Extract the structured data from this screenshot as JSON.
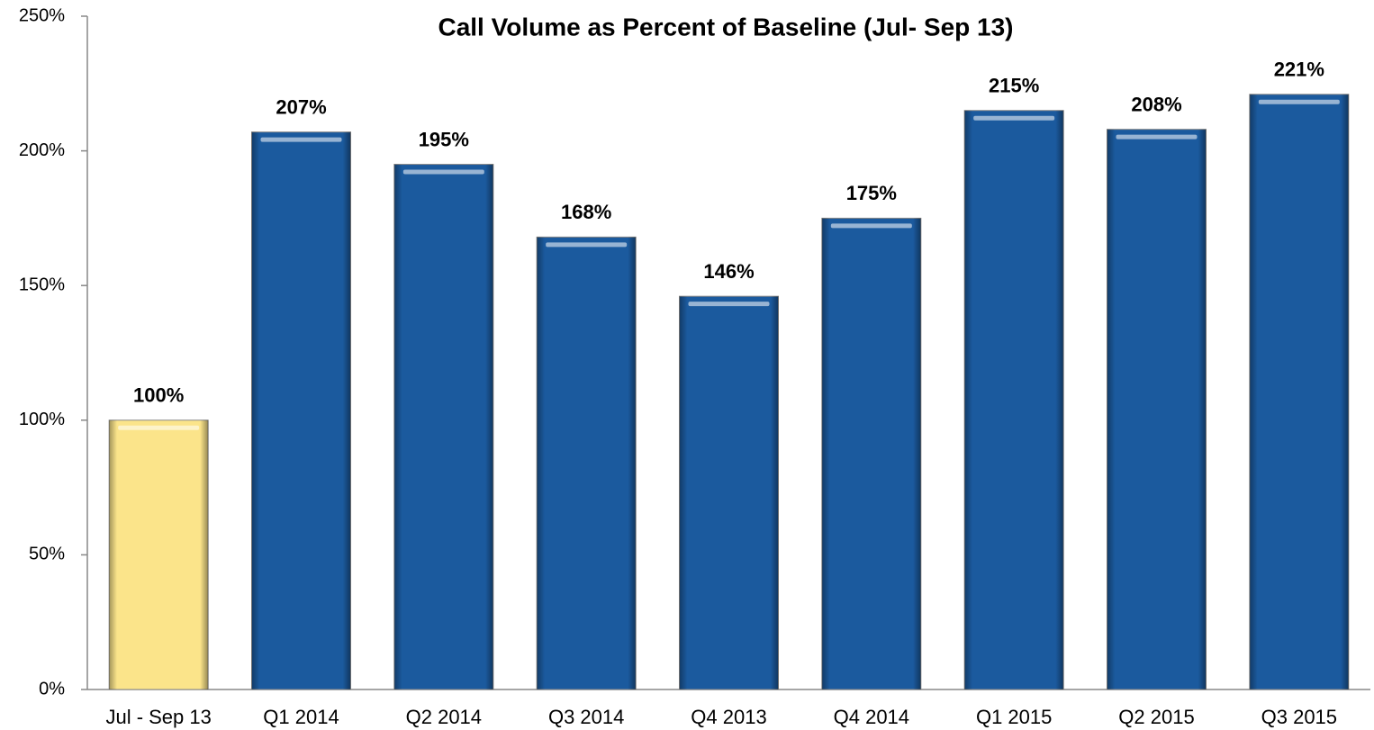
{
  "chart_data": {
    "type": "bar",
    "title": "Call Volume as Percent of Baseline (Jul- Sep 13)",
    "categories": [
      "Jul - Sep 13",
      "Q1 2014",
      "Q2 2014",
      "Q3 2014",
      "Q4 2013",
      "Q4 2014",
      "Q1 2015",
      "Q2 2015",
      "Q3 2015"
    ],
    "values": [
      100,
      207,
      195,
      168,
      146,
      175,
      215,
      208,
      221
    ],
    "value_labels": [
      "100%",
      "207%",
      "195%",
      "168%",
      "146%",
      "175%",
      "215%",
      "208%",
      "221%"
    ],
    "colors": [
      "#fbe48a",
      "#1b5a9e",
      "#1b5a9e",
      "#1b5a9e",
      "#1b5a9e",
      "#1b5a9e",
      "#1b5a9e",
      "#1b5a9e",
      "#1b5a9e"
    ],
    "ylim": [
      0,
      250
    ],
    "yticks": [
      {
        "value": 0,
        "label": "0%"
      },
      {
        "value": 50,
        "label": "50%"
      },
      {
        "value": 100,
        "label": "100%"
      },
      {
        "value": 150,
        "label": "150%"
      },
      {
        "value": 200,
        "label": "200%"
      },
      {
        "value": 250,
        "label": "250%"
      }
    ]
  }
}
